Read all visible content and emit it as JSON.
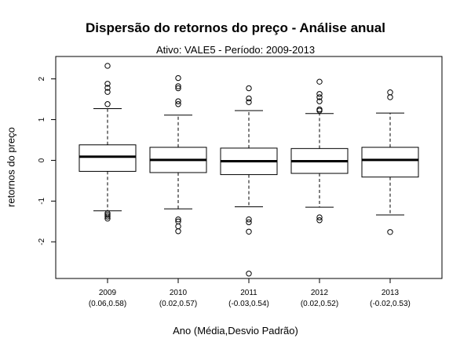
{
  "chart_data": {
    "type": "boxplot",
    "title": "Dispersão do  retornos do preço  - Análise anual",
    "subtitle": "Ativo: VALE5 - Período: 2009-2013",
    "xlabel": "Ano (Média,Desvio Padrão)",
    "ylabel": "retornos do preço",
    "ylim": [
      -2.9,
      2.55
    ],
    "yticks": [
      -2,
      -1,
      0,
      1,
      2
    ],
    "ytick_labels": [
      "-2",
      "-1",
      "0",
      "1",
      "2"
    ],
    "grid": false,
    "categories": [
      "2009",
      "2010",
      "2011",
      "2012",
      "2013"
    ],
    "category_sublabels": [
      "(0.06,0.58)",
      "(0.02,0.57)",
      "(-0.03,0.54)",
      "(0.02,0.52)",
      "(-0.02,0.53)"
    ],
    "boxes": [
      {
        "q1": -0.27,
        "median": 0.09,
        "q3": 0.38,
        "whisker_low": -1.24,
        "whisker_high": 1.27,
        "outliers": [
          2.32,
          1.88,
          1.78,
          1.68,
          1.38,
          -1.3,
          -1.34,
          -1.38,
          -1.43
        ]
      },
      {
        "q1": -0.3,
        "median": 0.01,
        "q3": 0.32,
        "whisker_low": -1.19,
        "whisker_high": 1.11,
        "outliers": [
          2.02,
          1.82,
          1.77,
          1.45,
          1.38,
          -1.45,
          -1.5,
          -1.62,
          -1.74
        ]
      },
      {
        "q1": -0.35,
        "median": -0.02,
        "q3": 0.3,
        "whisker_low": -1.14,
        "whisker_high": 1.22,
        "outliers": [
          1.77,
          1.52,
          1.43,
          -1.45,
          -1.52,
          -1.75,
          -2.78
        ]
      },
      {
        "q1": -0.32,
        "median": -0.02,
        "q3": 0.29,
        "whisker_low": -1.15,
        "whisker_high": 1.15,
        "outliers": [
          1.93,
          1.63,
          1.55,
          1.45,
          1.25,
          1.22,
          -1.4,
          -1.47
        ]
      },
      {
        "q1": -0.41,
        "median": 0.01,
        "q3": 0.32,
        "whisker_low": -1.34,
        "whisker_high": 1.16,
        "outliers": [
          1.67,
          1.55,
          -1.76
        ]
      }
    ]
  }
}
